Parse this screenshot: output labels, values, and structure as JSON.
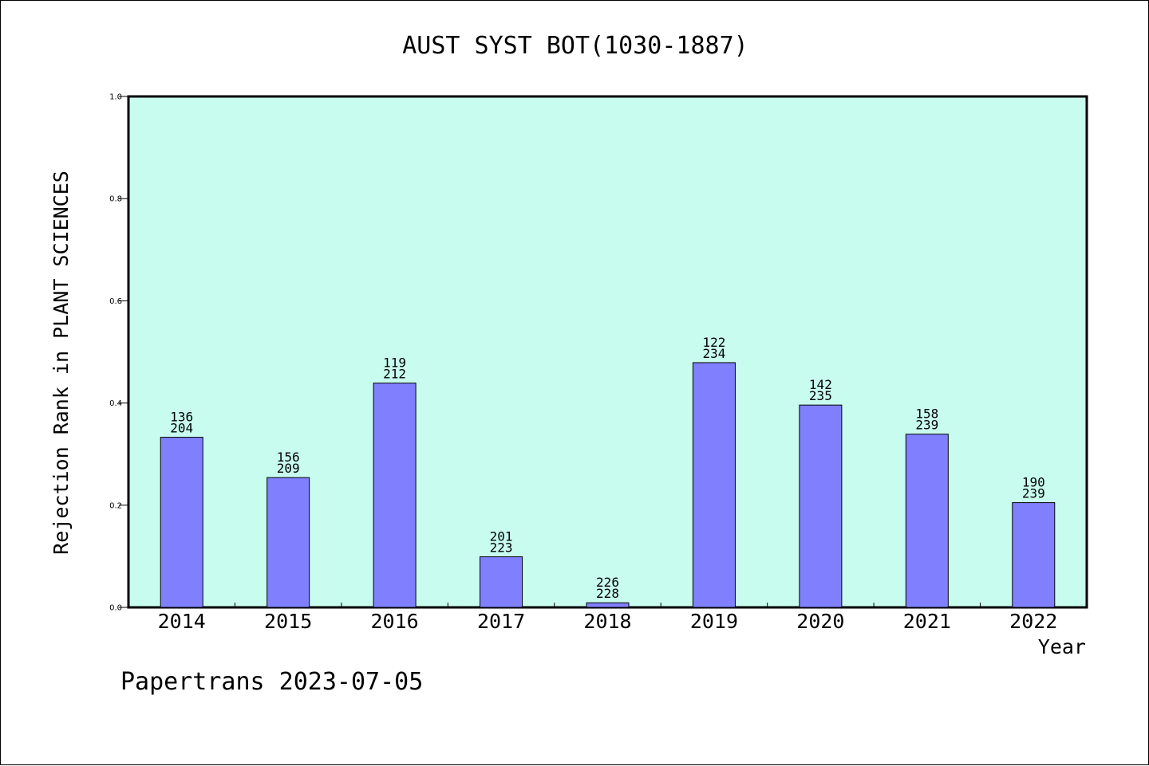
{
  "chart_data": {
    "type": "bar",
    "title": "AUST SYST BOT(1030-1887)",
    "xlabel": "Year",
    "ylabel": "Rejection Rank in PLANT SCIENCES",
    "categories": [
      "2014",
      "2015",
      "2016",
      "2017",
      "2018",
      "2019",
      "2020",
      "2021",
      "2022"
    ],
    "values": [
      0.333,
      0.254,
      0.439,
      0.099,
      0.009,
      0.479,
      0.396,
      0.339,
      0.205
    ],
    "rank_labels": [
      "136",
      "156",
      "119",
      "201",
      "226",
      "122",
      "142",
      "158",
      "190"
    ],
    "total_labels": [
      "204",
      "209",
      "212",
      "223",
      "228",
      "234",
      "235",
      "239",
      "239"
    ],
    "ylim": [
      0,
      1.0
    ],
    "yticks": [
      "0.0",
      "0.2",
      "0.4",
      "0.6",
      "0.8",
      "1.0"
    ],
    "grid": false,
    "colors": {
      "plot_background": "#c8fcef",
      "bar_fill": "#8080ff",
      "bar_stroke": "#000000"
    }
  },
  "footer": "Papertrans 2023-07-05"
}
